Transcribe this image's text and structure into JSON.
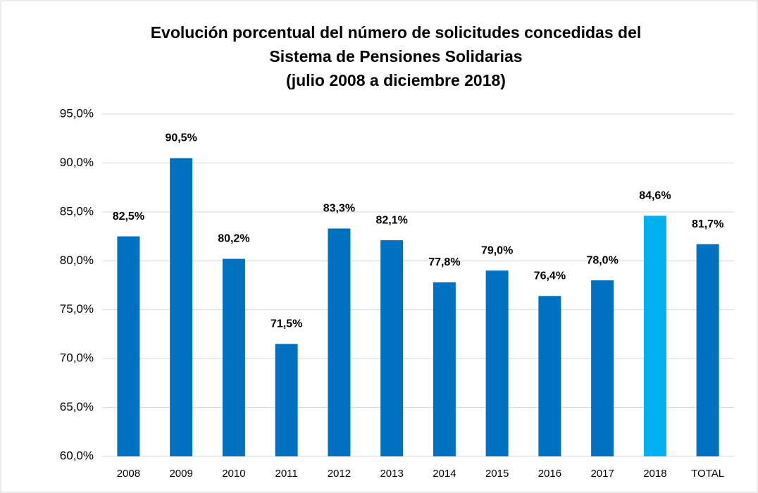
{
  "chart_data": {
    "type": "bar",
    "title": [
      "Evolución porcentual del número de solicitudes concedidas del",
      "Sistema de Pensiones Solidarias",
      "(julio 2008 a diciembre 2018)"
    ],
    "categories": [
      "2008",
      "2009",
      "2010",
      "2011",
      "2012",
      "2013",
      "2014",
      "2015",
      "2016",
      "2017",
      "2018",
      "TOTAL"
    ],
    "values": [
      82.5,
      90.5,
      80.2,
      71.5,
      83.3,
      82.1,
      77.8,
      79.0,
      76.4,
      78.0,
      84.6,
      81.7
    ],
    "value_labels": [
      "82,5%",
      "90,5%",
      "80,2%",
      "71,5%",
      "83,3%",
      "82,1%",
      "77,8%",
      "79,0%",
      "76,4%",
      "78,0%",
      "84,6%",
      "81,7%"
    ],
    "colors": [
      "#0070c0",
      "#0070c0",
      "#0070c0",
      "#0070c0",
      "#0070c0",
      "#0070c0",
      "#0070c0",
      "#0070c0",
      "#0070c0",
      "#0070c0",
      "#00b0f0",
      "#0070c0"
    ],
    "ylim": [
      60,
      95
    ],
    "yticks": [
      {
        "value": 60,
        "label": "60,0%"
      },
      {
        "value": 65,
        "label": "65,0%"
      },
      {
        "value": 70,
        "label": "70,0%"
      },
      {
        "value": 75,
        "label": "75,0%"
      },
      {
        "value": 80,
        "label": "80,0%"
      },
      {
        "value": 85,
        "label": "85,0%"
      },
      {
        "value": 90,
        "label": "90,0%"
      },
      {
        "value": 95,
        "label": "95,0%"
      }
    ],
    "grid": true
  }
}
